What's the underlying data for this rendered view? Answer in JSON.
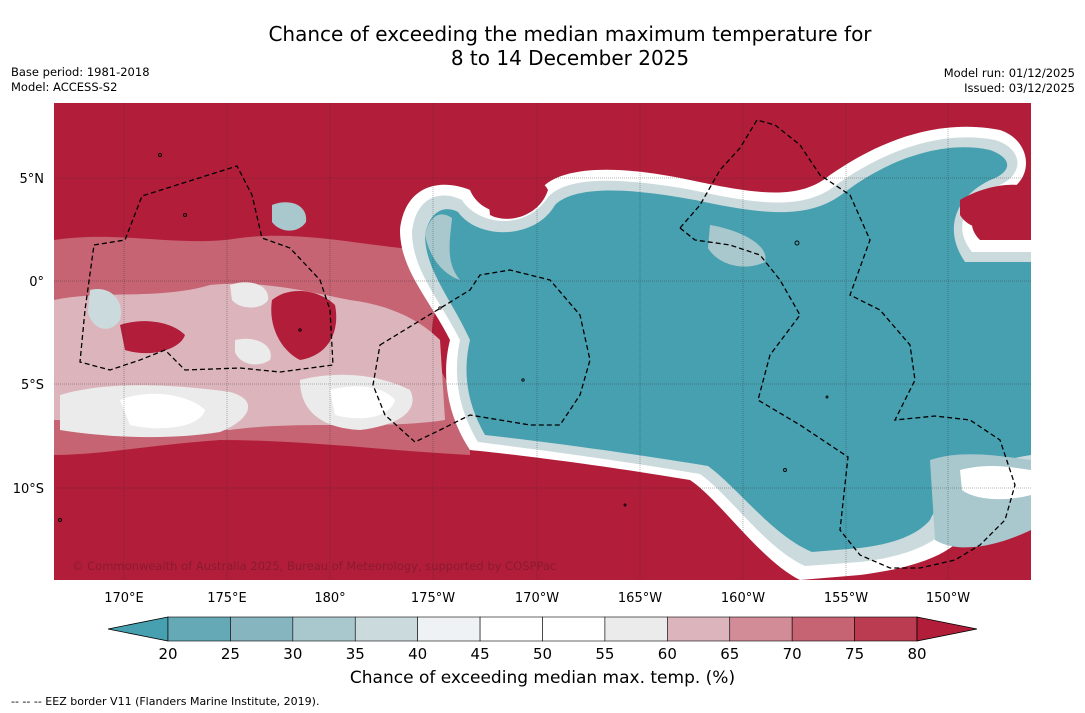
{
  "title_line1": "Chance of exceeding the median maximum temperature for",
  "title_line2": "8 to 14 December 2025",
  "base_period": "Base period: 1981-2018",
  "model": "Model: ACCESS-S2",
  "model_run": "Model run: 01/12/2025",
  "issued": "Issued: 03/12/2025",
  "copyright": "© Commonwealth of Australia 2025, Bureau of Meteorology, supported by COSPPac",
  "lat_labels": [
    "5°N",
    "0°",
    "5°S",
    "10°S"
  ],
  "lon_labels": [
    "170°E",
    "175°E",
    "180°",
    "175°W",
    "170°W",
    "165°W",
    "160°W",
    "155°W",
    "150°W"
  ],
  "colorbar": {
    "ticks": [
      "20",
      "25",
      "30",
      "35",
      "40",
      "45",
      "50",
      "55",
      "60",
      "65",
      "70",
      "75",
      "80"
    ],
    "colors": [
      "#46a0b0",
      "#65a9b7",
      "#86b5c0",
      "#a9c8cd",
      "#cbdadc",
      "#eef2f4",
      "#ffffff",
      "#ffffff",
      "#ebebeb",
      "#dcb5bc",
      "#d28c98",
      "#c66473",
      "#bb3c50",
      "#b21e3a"
    ],
    "label": "Chance of exceeding median max. temp. (%)"
  },
  "legend_footnote": "-- -- -- EEZ border V11 (Flanders Marine Institute, 2019).",
  "colors": {
    "warm": "#b21e3a",
    "cool": "#46a0b0"
  }
}
